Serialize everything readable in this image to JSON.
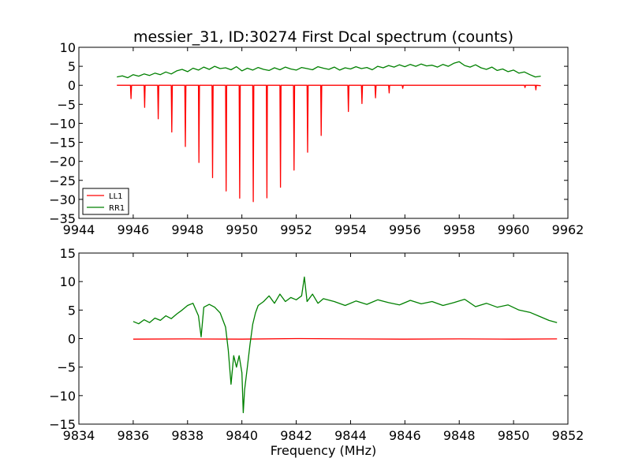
{
  "figure": {
    "title": "messier_31, ID:30274 First Dcal spectrum (counts)",
    "xlabel": "Frequency (MHz)"
  },
  "chart_data": [
    {
      "type": "line",
      "title": "messier_31, ID:30274 First Dcal spectrum (counts)",
      "xlabel": "",
      "ylabel": "",
      "xlim": [
        9944,
        9962
      ],
      "ylim": [
        -35,
        10
      ],
      "xticks": [
        9944,
        9946,
        9948,
        9950,
        9952,
        9954,
        9956,
        9958,
        9960,
        9962
      ],
      "yticks": [
        10,
        5,
        0,
        -5,
        -10,
        -15,
        -20,
        -25,
        -30,
        -35
      ],
      "grid": false,
      "legend": {
        "placement": "lower-left",
        "entries": [
          "LL1",
          "RR1"
        ]
      },
      "series": [
        {
          "name": "LL1",
          "color": "#ff0000",
          "x": [
            9945.4,
            9945.9,
            9945.92,
            9945.94,
            9946.4,
            9946.42,
            9946.44,
            9946.9,
            9946.92,
            9946.94,
            9947.4,
            9947.42,
            9947.44,
            9947.9,
            9947.92,
            9947.94,
            9948.4,
            9948.42,
            9948.44,
            9948.9,
            9948.92,
            9948.94,
            9949.4,
            9949.42,
            9949.44,
            9949.9,
            9949.92,
            9949.94,
            9950.4,
            9950.42,
            9950.44,
            9950.9,
            9950.92,
            9950.94,
            9951.4,
            9951.42,
            9951.44,
            9951.9,
            9951.92,
            9951.94,
            9952.4,
            9952.42,
            9952.44,
            9952.9,
            9952.92,
            9952.94,
            9953.9,
            9953.92,
            9953.94,
            9954.4,
            9954.42,
            9954.44,
            9954.9,
            9954.92,
            9954.94,
            9955.4,
            9955.42,
            9955.44,
            9955.9,
            9955.92,
            9955.94,
            9960.4,
            9960.42,
            9960.44,
            9960.8,
            9960.82,
            9960.84,
            9961.0
          ],
          "y": [
            0,
            0,
            -3.5,
            0,
            0,
            -5.8,
            0,
            0,
            -8.8,
            0,
            0,
            -12.3,
            0,
            0,
            -16.1,
            0,
            0,
            -20.3,
            0,
            0,
            -24.3,
            0,
            0,
            -27.8,
            0,
            0,
            -29.7,
            0,
            0,
            -30.6,
            0,
            0,
            -29.6,
            0,
            0,
            -26.8,
            0,
            0,
            -22.3,
            0,
            0,
            -17.6,
            0,
            0,
            -13.2,
            0,
            0,
            -6.9,
            0,
            0,
            -4.8,
            0,
            0,
            -3.3,
            0,
            0,
            -2.0,
            0,
            0,
            -0.8,
            0,
            0,
            -0.6,
            0,
            0,
            -1.2,
            0,
            -0.1
          ]
        },
        {
          "name": "RR1",
          "color": "#008000",
          "x": [
            9945.4,
            9945.6,
            9945.8,
            9946.0,
            9946.2,
            9946.4,
            9946.6,
            9946.8,
            9947.0,
            9947.2,
            9947.4,
            9947.6,
            9947.8,
            9948.0,
            9948.2,
            9948.4,
            9948.6,
            9948.8,
            9949.0,
            9949.2,
            9949.4,
            9949.6,
            9949.8,
            9950.0,
            9950.2,
            9950.4,
            9950.6,
            9950.8,
            9951.0,
            9951.2,
            9951.4,
            9951.6,
            9951.8,
            9952.0,
            9952.2,
            9952.4,
            9952.6,
            9952.8,
            9953.0,
            9953.2,
            9953.4,
            9953.6,
            9953.8,
            9954.0,
            9954.2,
            9954.4,
            9954.6,
            9954.8,
            9955.0,
            9955.2,
            9955.4,
            9955.6,
            9955.8,
            9956.0,
            9956.2,
            9956.4,
            9956.6,
            9956.8,
            9957.0,
            9957.2,
            9957.4,
            9957.6,
            9957.8,
            9958.0,
            9958.2,
            9958.4,
            9958.6,
            9958.8,
            9959.0,
            9959.2,
            9959.4,
            9959.6,
            9959.8,
            9960.0,
            9960.2,
            9960.4,
            9960.6,
            9960.8,
            9961.0
          ],
          "y": [
            2.2,
            2.5,
            2.0,
            2.8,
            2.4,
            3.0,
            2.6,
            3.2,
            2.8,
            3.5,
            3.0,
            3.8,
            4.2,
            3.6,
            4.5,
            4.0,
            4.8,
            4.2,
            5.0,
            4.4,
            4.6,
            4.1,
            4.9,
            3.8,
            4.5,
            4.0,
            4.7,
            4.2,
            3.9,
            4.6,
            4.1,
            4.8,
            4.3,
            4.0,
            4.7,
            4.4,
            4.1,
            4.9,
            4.5,
            4.2,
            4.8,
            4.0,
            4.6,
            4.3,
            4.9,
            4.4,
            4.7,
            4.1,
            5.0,
            4.6,
            5.2,
            4.8,
            5.4,
            4.9,
            5.5,
            5.0,
            5.6,
            5.1,
            5.3,
            4.8,
            5.5,
            5.0,
            5.8,
            6.2,
            5.2,
            4.8,
            5.4,
            4.6,
            4.2,
            4.8,
            3.9,
            4.3,
            3.6,
            4.0,
            3.2,
            3.5,
            2.8,
            2.2,
            2.4
          ]
        }
      ]
    },
    {
      "type": "line",
      "title": "",
      "xlabel": "Frequency (MHz)",
      "ylabel": "",
      "xlim": [
        9834,
        9852
      ],
      "ylim": [
        -15,
        15
      ],
      "xticks": [
        9834,
        9836,
        9838,
        9840,
        9842,
        9844,
        9846,
        9848,
        9850,
        9852
      ],
      "yticks": [
        15,
        10,
        5,
        0,
        -5,
        -10,
        -15
      ],
      "grid": false,
      "series": [
        {
          "name": "LL1",
          "color": "#ff0000",
          "x": [
            9836.0,
            9838.0,
            9840.0,
            9842.0,
            9844.0,
            9846.0,
            9848.0,
            9850.0,
            9851.6
          ],
          "y": [
            -0.1,
            -0.05,
            -0.1,
            0.0,
            -0.05,
            -0.1,
            -0.05,
            -0.1,
            -0.05
          ]
        },
        {
          "name": "RR1",
          "color": "#008000",
          "x": [
            9836.0,
            9836.2,
            9836.4,
            9836.6,
            9836.8,
            9837.0,
            9837.2,
            9837.4,
            9837.6,
            9837.8,
            9838.0,
            9838.2,
            9838.4,
            9838.5,
            9838.6,
            9838.8,
            9839.0,
            9839.2,
            9839.4,
            9839.5,
            9839.6,
            9839.7,
            9839.8,
            9839.9,
            9840.0,
            9840.05,
            9840.1,
            9840.2,
            9840.3,
            9840.4,
            9840.5,
            9840.6,
            9840.8,
            9841.0,
            9841.2,
            9841.4,
            9841.6,
            9841.8,
            9842.0,
            9842.2,
            9842.3,
            9842.4,
            9842.6,
            9842.8,
            9843.0,
            9843.4,
            9843.8,
            9844.2,
            9844.6,
            9845.0,
            9845.4,
            9845.8,
            9846.2,
            9846.6,
            9847.0,
            9847.4,
            9847.8,
            9848.2,
            9848.6,
            9849.0,
            9849.4,
            9849.8,
            9850.2,
            9850.6,
            9851.0,
            9851.3,
            9851.6
          ],
          "y": [
            3.0,
            2.6,
            3.3,
            2.8,
            3.6,
            3.2,
            4.0,
            3.5,
            4.3,
            5.0,
            5.8,
            6.2,
            4.0,
            0.3,
            5.5,
            6.0,
            5.5,
            4.5,
            2.0,
            -2.0,
            -8.0,
            -3.0,
            -5.0,
            -3.0,
            -6.0,
            -13.0,
            -9.0,
            -5.0,
            -1.0,
            2.5,
            4.5,
            5.8,
            6.5,
            7.5,
            6.2,
            7.8,
            6.5,
            7.2,
            6.8,
            7.5,
            10.8,
            6.5,
            7.8,
            6.2,
            7.0,
            6.5,
            5.8,
            6.6,
            6.0,
            6.8,
            6.3,
            5.9,
            6.7,
            6.1,
            6.5,
            5.8,
            6.3,
            6.9,
            5.6,
            6.2,
            5.5,
            5.9,
            5.0,
            4.6,
            3.8,
            3.2,
            2.8
          ]
        }
      ]
    }
  ]
}
